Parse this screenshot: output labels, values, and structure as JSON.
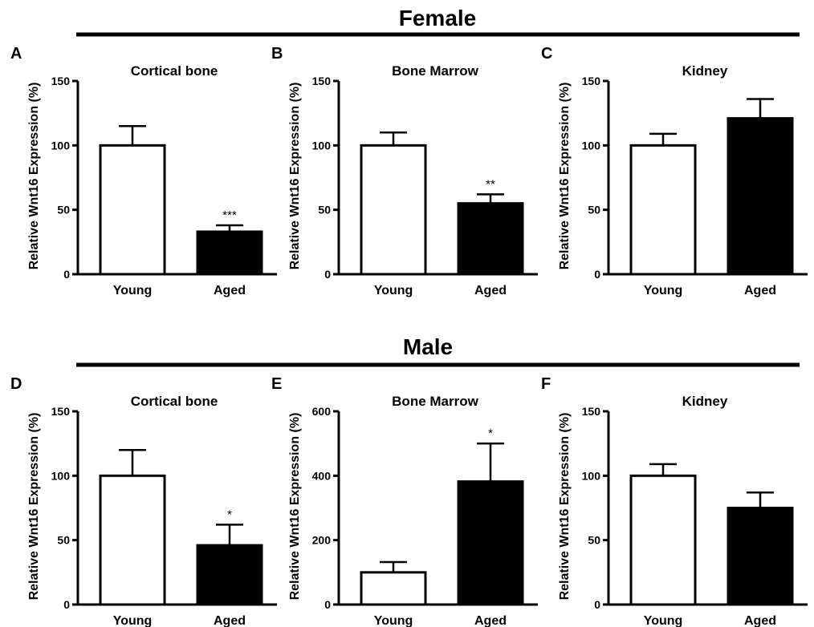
{
  "sections": [
    {
      "title": "Female"
    },
    {
      "title": "Male"
    }
  ],
  "ylabel": "Relative Wnt16 Expression (%)",
  "colors": {
    "young_fill": "#ffffff",
    "aged_fill": "#000000",
    "stroke": "#000000"
  },
  "chart_data": [
    {
      "panel": "A",
      "type": "bar",
      "title": "Cortical bone",
      "categories": [
        "Young",
        "Aged"
      ],
      "values": [
        100,
        33
      ],
      "errors": [
        15,
        5
      ],
      "significance": [
        "",
        "***"
      ],
      "ylabel": "Relative Wnt16 Expression (%)",
      "ylim": [
        0,
        150
      ],
      "yticks": [
        0,
        50,
        100,
        150
      ]
    },
    {
      "panel": "B",
      "type": "bar",
      "title": "Bone Marrow",
      "categories": [
        "Young",
        "Aged"
      ],
      "values": [
        100,
        55
      ],
      "errors": [
        10,
        7
      ],
      "significance": [
        "",
        "**"
      ],
      "ylabel": "Relative Wnt16 Expression (%)",
      "ylim": [
        0,
        150
      ],
      "yticks": [
        0,
        50,
        100,
        150
      ]
    },
    {
      "panel": "C",
      "type": "bar",
      "title": "Kidney",
      "categories": [
        "Young",
        "Aged"
      ],
      "values": [
        100,
        121
      ],
      "errors": [
        9,
        15
      ],
      "significance": [
        "",
        ""
      ],
      "ylabel": "Relative Wnt16 Expression (%)",
      "ylim": [
        0,
        150
      ],
      "yticks": [
        0,
        50,
        100,
        150
      ]
    },
    {
      "panel": "D",
      "type": "bar",
      "title": "Cortical bone",
      "categories": [
        "Young",
        "Aged"
      ],
      "values": [
        100,
        46
      ],
      "errors": [
        20,
        16
      ],
      "significance": [
        "",
        "*"
      ],
      "ylabel": "Relative Wnt16 Expression (%)",
      "ylim": [
        0,
        150
      ],
      "yticks": [
        0,
        50,
        100,
        150
      ]
    },
    {
      "panel": "E",
      "type": "bar",
      "title": "Bone Marrow",
      "categories": [
        "Young",
        "Aged"
      ],
      "values": [
        100,
        382
      ],
      "errors": [
        32,
        118
      ],
      "significance": [
        "",
        "*"
      ],
      "ylabel": "Relative Wnt16 Expression (%)",
      "ylim": [
        0,
        600
      ],
      "yticks": [
        0,
        200,
        400,
        600
      ]
    },
    {
      "panel": "F",
      "type": "bar",
      "title": "Kidney",
      "categories": [
        "Young",
        "Aged"
      ],
      "values": [
        100,
        75
      ],
      "errors": [
        9,
        12
      ],
      "significance": [
        "",
        ""
      ],
      "ylabel": "Relative Wnt16 Expression (%)",
      "ylim": [
        0,
        150
      ],
      "yticks": [
        0,
        50,
        100,
        150
      ]
    }
  ]
}
